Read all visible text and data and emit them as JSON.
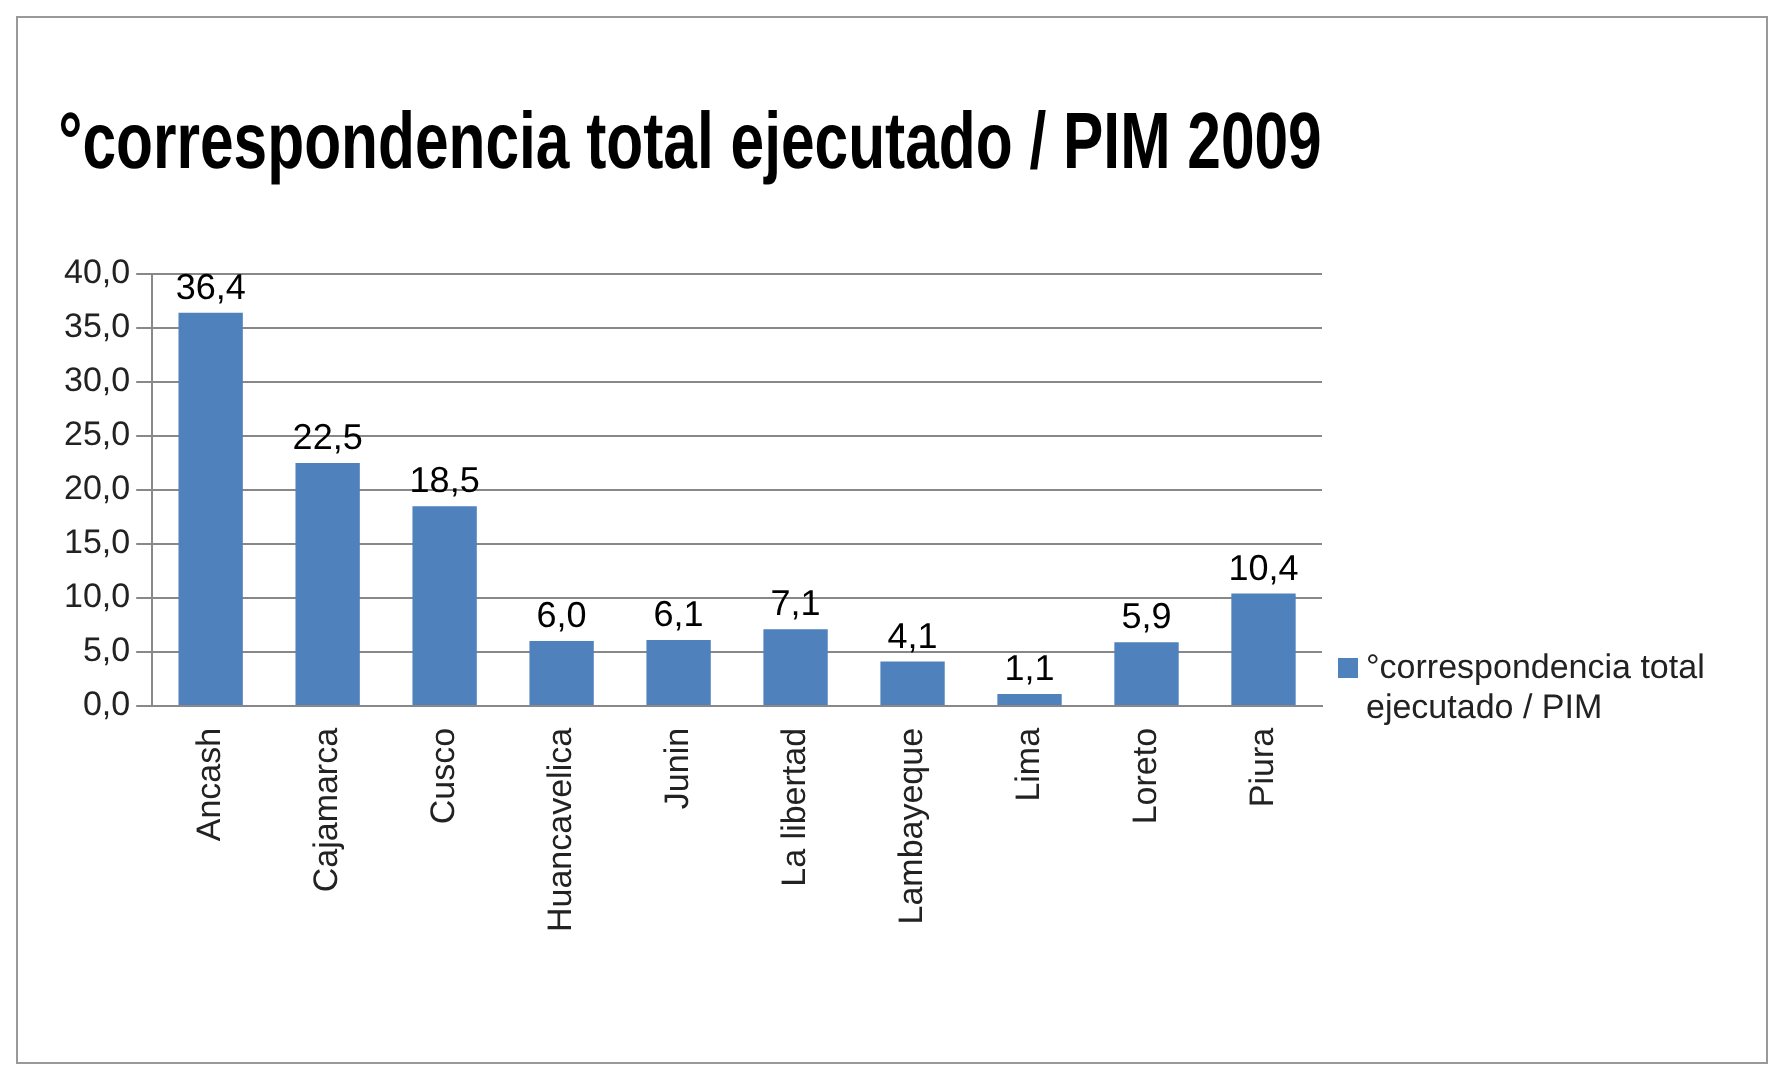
{
  "chart_data": {
    "type": "bar",
    "title": "°correspondencia total ejecutado / PIM 2009",
    "categories": [
      "Ancash",
      "Cajamarca",
      "Cusco",
      "Huancavelica",
      "Junin",
      "La libertad",
      "Lambayeque",
      "Lima",
      "Loreto",
      "Piura"
    ],
    "series": [
      {
        "name": "°correspondencia total ejecutado / PIM",
        "color": "#4f81bd",
        "values": [
          36.4,
          22.5,
          18.5,
          6.0,
          6.1,
          7.1,
          4.1,
          1.1,
          5.9,
          10.4
        ],
        "value_labels": [
          "36,4",
          "22,5",
          "18,5",
          "6,0",
          "6,1",
          "7,1",
          "4,1",
          "1,1",
          "5,9",
          "10,4"
        ]
      }
    ],
    "ylim": [
      0,
      40
    ],
    "yticks": [
      {
        "value": 0,
        "label": "0,0"
      },
      {
        "value": 5,
        "label": "5,0"
      },
      {
        "value": 10,
        "label": "10,0"
      },
      {
        "value": 15,
        "label": "15,0"
      },
      {
        "value": 20,
        "label": "20,0"
      },
      {
        "value": 25,
        "label": "25,0"
      },
      {
        "value": 30,
        "label": "30,0"
      },
      {
        "value": 35,
        "label": "35,0"
      },
      {
        "value": 40,
        "label": "40,0"
      }
    ],
    "grid": "y",
    "legend": "right"
  }
}
